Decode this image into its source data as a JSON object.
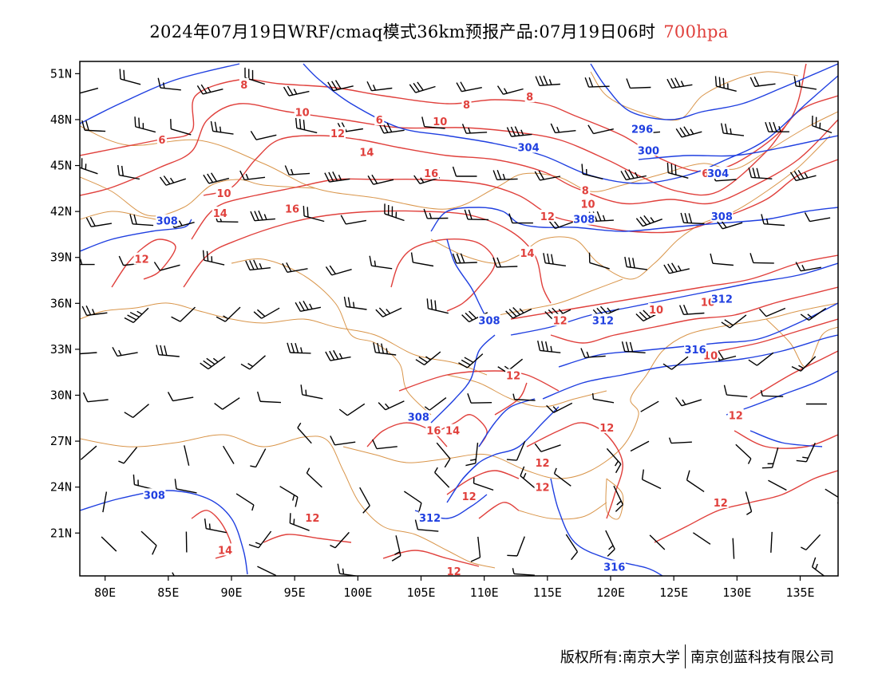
{
  "title": {
    "main": "2024年07月19日WRF/cmaq模式36km预报产品:07月19日06时",
    "level": "700hpa"
  },
  "footer": {
    "left": "版权所有:南京大学",
    "right": "南京创蓝科技有限公司"
  },
  "colors": {
    "temperature": "#e0403c",
    "geopotential": "#1f3fe0",
    "border": "#d9954a",
    "wind": "#000000",
    "frame": "#000000"
  },
  "map": {
    "lon_range": [
      78,
      138
    ],
    "lat_range": [
      18.2,
      51.8
    ],
    "x_ticks": [
      "80E",
      "85E",
      "90E",
      "95E",
      "100E",
      "105E",
      "110E",
      "115E",
      "120E",
      "125E",
      "130E",
      "135E"
    ],
    "x_tick_values": [
      80,
      85,
      90,
      95,
      100,
      105,
      110,
      115,
      120,
      125,
      130,
      135
    ],
    "y_ticks": [
      "21N",
      "24N",
      "27N",
      "30N",
      "33N",
      "36N",
      "39N",
      "42N",
      "45N",
      "48N",
      "51N"
    ],
    "y_tick_values": [
      21,
      24,
      27,
      30,
      33,
      36,
      39,
      42,
      45,
      48,
      51
    ]
  },
  "geopotential_labels": [
    {
      "text": "296",
      "lon": 122.5,
      "lat": 47.4
    },
    {
      "text": "300",
      "lon": 123.0,
      "lat": 46.0
    },
    {
      "text": "304",
      "lon": 113.5,
      "lat": 46.2
    },
    {
      "text": "304",
      "lon": 128.5,
      "lat": 44.5
    },
    {
      "text": "308",
      "lon": 84.9,
      "lat": 41.4
    },
    {
      "text": "308",
      "lon": 117.9,
      "lat": 41.5
    },
    {
      "text": "308",
      "lon": 128.8,
      "lat": 41.7
    },
    {
      "text": "308",
      "lon": 110.4,
      "lat": 34.9
    },
    {
      "text": "308",
      "lon": 104.8,
      "lat": 28.6
    },
    {
      "text": "308",
      "lon": 83.9,
      "lat": 23.5
    },
    {
      "text": "312",
      "lon": 128.8,
      "lat": 36.3
    },
    {
      "text": "312",
      "lon": 119.4,
      "lat": 34.9
    },
    {
      "text": "316",
      "lon": 126.7,
      "lat": 33.0
    },
    {
      "text": "312",
      "lon": 105.7,
      "lat": 22.0
    },
    {
      "text": "316",
      "lon": 120.3,
      "lat": 18.8
    }
  ],
  "temperature_labels": [
    {
      "text": "8",
      "lon": 91.0,
      "lat": 50.3
    },
    {
      "text": "10",
      "lon": 95.6,
      "lat": 48.5
    },
    {
      "text": "8",
      "lon": 108.6,
      "lat": 49.0
    },
    {
      "text": "8",
      "lon": 113.6,
      "lat": 49.5
    },
    {
      "text": "6",
      "lon": 101.7,
      "lat": 48.0
    },
    {
      "text": "10",
      "lon": 106.5,
      "lat": 47.9
    },
    {
      "text": "12",
      "lon": 98.4,
      "lat": 47.1
    },
    {
      "text": "6",
      "lon": 84.5,
      "lat": 46.7
    },
    {
      "text": "14",
      "lon": 100.7,
      "lat": 45.9
    },
    {
      "text": "16",
      "lon": 105.8,
      "lat": 44.5
    },
    {
      "text": "10",
      "lon": 89.4,
      "lat": 43.2
    },
    {
      "text": "14",
      "lon": 89.1,
      "lat": 41.9
    },
    {
      "text": "16",
      "lon": 94.8,
      "lat": 42.2
    },
    {
      "text": "8",
      "lon": 118.0,
      "lat": 43.4
    },
    {
      "text": "10",
      "lon": 118.2,
      "lat": 42.5
    },
    {
      "text": "6",
      "lon": 127.5,
      "lat": 44.5
    },
    {
      "text": "12",
      "lon": 115.0,
      "lat": 41.7
    },
    {
      "text": "14",
      "lon": 113.4,
      "lat": 39.3
    },
    {
      "text": "12",
      "lon": 82.9,
      "lat": 38.9
    },
    {
      "text": "12",
      "lon": 116.0,
      "lat": 34.9
    },
    {
      "text": "10",
      "lon": 123.6,
      "lat": 35.6
    },
    {
      "text": "10",
      "lon": 127.7,
      "lat": 36.1
    },
    {
      "text": "10",
      "lon": 127.9,
      "lat": 32.6
    },
    {
      "text": "12",
      "lon": 112.3,
      "lat": 31.3
    },
    {
      "text": "16",
      "lon": 106.0,
      "lat": 27.7
    },
    {
      "text": "14",
      "lon": 107.5,
      "lat": 27.7
    },
    {
      "text": "12",
      "lon": 119.7,
      "lat": 27.9
    },
    {
      "text": "12",
      "lon": 129.9,
      "lat": 28.7
    },
    {
      "text": "12",
      "lon": 114.6,
      "lat": 25.6
    },
    {
      "text": "12",
      "lon": 114.6,
      "lat": 24.0
    },
    {
      "text": "12",
      "lon": 108.8,
      "lat": 23.4
    },
    {
      "text": "12",
      "lon": 128.7,
      "lat": 23.0
    },
    {
      "text": "12",
      "lon": 96.4,
      "lat": 22.0
    },
    {
      "text": "14",
      "lon": 89.5,
      "lat": 19.9
    },
    {
      "text": "12",
      "lon": 107.6,
      "lat": 18.5
    }
  ]
}
